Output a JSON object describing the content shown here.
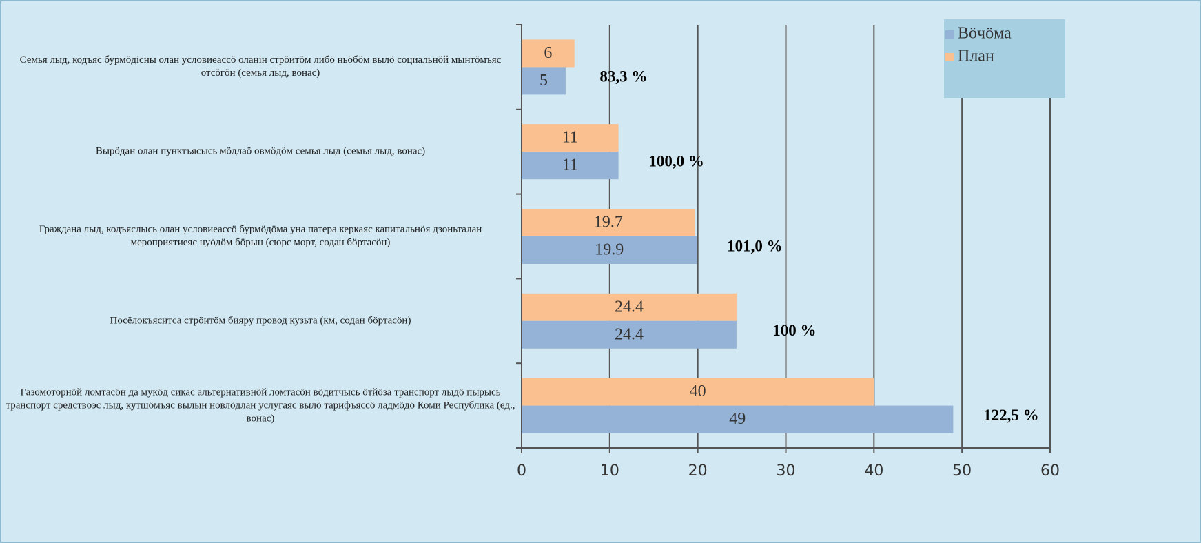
{
  "chart_data": {
    "type": "barh",
    "categories": [
      "Семья лыд, кодъяс бурмӧдісны олан условиеассӧ оланін стрӧитӧм либӧ ньӧбӧм вылӧ социальнӧй мынтӧмъяс отсӧгӧн (семья лыд, вонас)",
      "Вырӧдан олан пунктъясысь мӧдлаӧ овмӧдӧм семья лыд (семья лыд, вонас)",
      "Граждана лыд, кодъяслысь олан условиеассӧ бурмӧдӧма уна патера керкаяс капитальнӧя дзоньталан мероприятиеяс нуӧдӧм бӧрын (сюрс морт, содан бӧртасӧн)",
      "Посёлокъяситса стрӧитӧм бияру провод кузьта (км, содан бӧртасӧн)",
      "Газомоторнӧй ломтасӧн да мукӧд сикас альтернативнӧй ломтасӧн вӧдитчысь ӧтйӧза транспорт лыдӧ пырысь транспорт средствоэс лыд, кутшӧмъяс вылын новлӧдлан услугаяс вылӧ тарифъяссӧ ладмӧдӧ Коми Республика (ед., вонас)"
    ],
    "series": [
      {
        "name": "Вӧчӧма",
        "color": "#95b3d7",
        "values": [
          5,
          11,
          19.9,
          24.4,
          49
        ]
      },
      {
        "name": "План",
        "color": "#fac08f",
        "values": [
          6,
          11,
          19.7,
          24.4,
          40
        ]
      }
    ],
    "annotations": [
      "83,3 %",
      "100,0 %",
      "101,0 %",
      "100 %",
      "122,5 %"
    ],
    "xlim": [
      0,
      60
    ],
    "xticks": [
      0,
      10,
      20,
      30,
      40,
      50,
      60
    ],
    "grid": true,
    "legend": "upper right"
  }
}
